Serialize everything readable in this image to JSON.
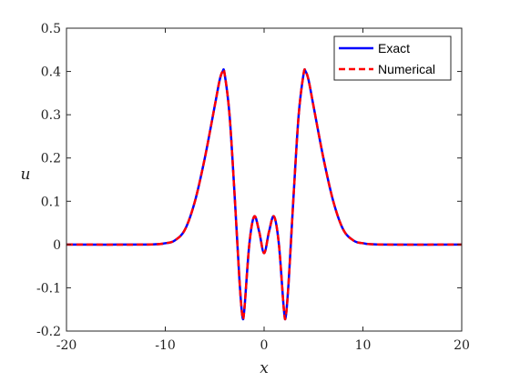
{
  "chart_data": {
    "type": "line",
    "xlabel": "x",
    "ylabel": "u",
    "xlim": [
      -20,
      20
    ],
    "ylim": [
      -0.2,
      0.5
    ],
    "xticks": [
      -20,
      -10,
      0,
      10,
      20
    ],
    "yticks": [
      -0.2,
      -0.1,
      0,
      0.1,
      0.2,
      0.3,
      0.4,
      0.5
    ],
    "grid": false,
    "legend_position": "top-right",
    "x": [
      -20,
      -12,
      -10,
      -9,
      -8,
      -7,
      -6,
      -5,
      -4.5,
      -4.2,
      -4,
      -3.5,
      -3,
      -2.5,
      -2.2,
      -2,
      -1.5,
      -1,
      -0.5,
      0,
      0.5,
      1,
      1.5,
      2,
      2.2,
      2.5,
      3,
      3.5,
      4,
      4.2,
      4.5,
      5,
      6,
      7,
      8,
      9,
      10,
      12,
      20
    ],
    "series": [
      {
        "name": "Exact",
        "color": "#0000ff",
        "style": "solid",
        "values": [
          0,
          0,
          0.003,
          0.01,
          0.035,
          0.1,
          0.2,
          0.32,
          0.38,
          0.4,
          0.395,
          0.3,
          0.12,
          -0.08,
          -0.165,
          -0.15,
          0.0,
          0.065,
          0.03,
          -0.02,
          0.03,
          0.065,
          0.0,
          -0.15,
          -0.165,
          -0.08,
          0.12,
          0.3,
          0.395,
          0.4,
          0.38,
          0.32,
          0.2,
          0.1,
          0.035,
          0.01,
          0.003,
          0,
          0
        ]
      },
      {
        "name": "Numerical",
        "color": "#ff0000",
        "style": "dashed",
        "values": [
          0,
          0,
          0.003,
          0.01,
          0.035,
          0.1,
          0.2,
          0.32,
          0.38,
          0.4,
          0.395,
          0.3,
          0.12,
          -0.08,
          -0.165,
          -0.15,
          0.0,
          0.065,
          0.03,
          -0.02,
          0.03,
          0.065,
          0.0,
          -0.15,
          -0.165,
          -0.08,
          0.12,
          0.3,
          0.395,
          0.4,
          0.38,
          0.32,
          0.2,
          0.1,
          0.035,
          0.01,
          0.003,
          0,
          0
        ]
      }
    ]
  }
}
